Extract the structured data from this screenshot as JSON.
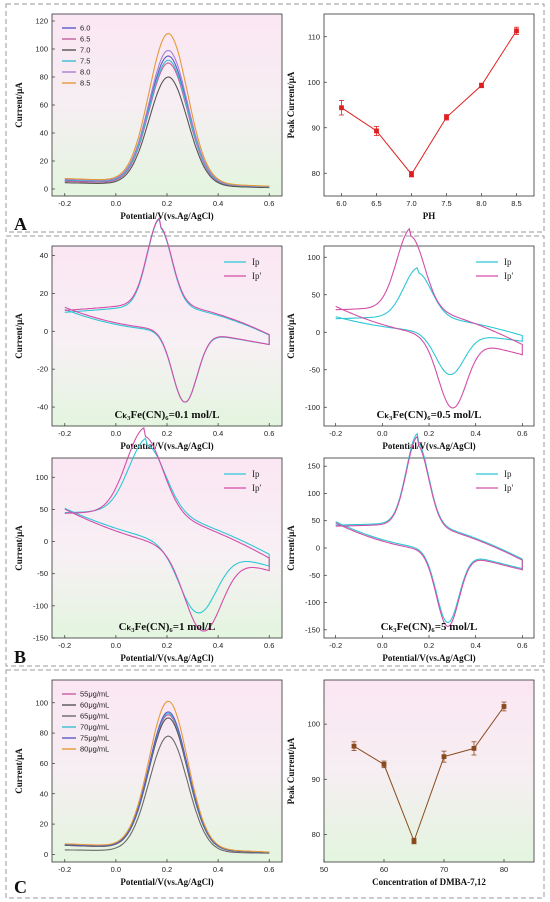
{
  "panel_labels": {
    "a": "A",
    "b": "B",
    "c": "C"
  },
  "chart_data": [
    {
      "id": "A1",
      "type": "line",
      "xlabel": "Potential/V(vs.Ag/AgCl)",
      "ylabel": "Current/μA",
      "xlim": [
        -0.25,
        0.65
      ],
      "ylim": [
        -5,
        125
      ],
      "xticks": [
        -0.2,
        0.0,
        0.2,
        0.4,
        0.6
      ],
      "yticks": [
        0,
        20,
        40,
        60,
        80,
        100,
        120
      ],
      "tick_labels_x": [
        "-0.2",
        "0.0",
        "0.2",
        "0.4",
        "0.6"
      ],
      "tick_labels_y": [
        "0",
        "20",
        "40",
        "60",
        "80",
        "100",
        "120"
      ],
      "legend_position": "top-left",
      "series": [
        {
          "name": "6.0",
          "color": "#5b5bc8",
          "peak": 95,
          "base0": 6,
          "base1": 1.5
        },
        {
          "name": "6.5",
          "color": "#c45fa0",
          "peak": 90,
          "base0": 5.5,
          "base1": 1.2
        },
        {
          "name": "7.0",
          "color": "#555555",
          "peak": 80,
          "base0": 4.5,
          "base1": 1.0
        },
        {
          "name": "7.5",
          "color": "#3dbdd0",
          "peak": 92,
          "base0": 6.5,
          "base1": 1.6
        },
        {
          "name": "8.0",
          "color": "#a77dd6",
          "peak": 99,
          "base0": 7,
          "base1": 1.8
        },
        {
          "name": "8.5",
          "color": "#e59a3a",
          "peak": 111,
          "base0": 7.5,
          "base1": 2.0
        }
      ]
    },
    {
      "id": "A2",
      "type": "scatter",
      "xlabel": "PH",
      "ylabel": "Peak Current/μA",
      "xlim": [
        5.75,
        8.75
      ],
      "ylim": [
        75,
        115
      ],
      "xticks": [
        6.0,
        6.5,
        7.0,
        7.5,
        8.0,
        8.5
      ],
      "yticks": [
        80,
        90,
        100,
        110
      ],
      "tick_labels_x": [
        "6.0",
        "6.5",
        "7.0",
        "7.5",
        "8.0",
        "8.5"
      ],
      "tick_labels_y": [
        "80",
        "90",
        "100",
        "110"
      ],
      "x": [
        6.0,
        6.5,
        7.0,
        7.5,
        8.0,
        8.5
      ],
      "y": [
        94.4,
        89.3,
        79.8,
        92.3,
        99.3,
        111.3
      ],
      "err": [
        1.6,
        1.0,
        0.6,
        0.6,
        0.5,
        0.8
      ],
      "color": "#e02020"
    },
    {
      "id": "B1",
      "type": "line",
      "xlabel": "Potential/V(vs.Ag/AgCl)",
      "ylabel": "Current/μA",
      "condition": "Cₖ₃Fe(CN)₆=0.1 mol/L",
      "xlim": [
        -0.25,
        0.65
      ],
      "ylim": [
        -50,
        45
      ],
      "xticks": [
        -0.2,
        0.0,
        0.2,
        0.4,
        0.6
      ],
      "yticks": [
        -40,
        -20,
        0,
        20,
        40
      ],
      "tick_labels_x": [
        "-0.2",
        "0.0",
        "0.2",
        "0.4",
        "0.6"
      ],
      "tick_labels_y": [
        "-40",
        "-20",
        "0",
        "20",
        "40"
      ],
      "legend_position": "top-right",
      "series": [
        {
          "name": "Ip",
          "color": "#2ec7d6",
          "ipa": 41,
          "ipc": -38,
          "epa": 0.17,
          "epc": 0.27,
          "w": 0.08,
          "a0": 10,
          "c1": -7
        },
        {
          "name": "Ip'",
          "color": "#d24fa8",
          "ipa": 40.5,
          "ipc": -38.5,
          "epa": 0.17,
          "epc": 0.27,
          "w": 0.08,
          "a0": 11,
          "c1": -7
        }
      ]
    },
    {
      "id": "B2",
      "type": "line",
      "xlabel": "Potential/V(vs.Ag/AgCl)",
      "ylabel": "Current/μA",
      "condition": "Cₖ₃Fe(CN)₆=0.5 mol/L",
      "xlim": [
        -0.25,
        0.65
      ],
      "ylim": [
        -125,
        115
      ],
      "xticks": [
        -0.2,
        0.0,
        0.2,
        0.4,
        0.6
      ],
      "yticks": [
        -100,
        -50,
        0,
        50,
        100
      ],
      "tick_labels_x": [
        "-0.2",
        "0.0",
        "0.2",
        "0.4",
        "0.6"
      ],
      "tick_labels_y": [
        "-100",
        "-50",
        "0",
        "50",
        "100"
      ],
      "legend_position": "top-right",
      "series": [
        {
          "name": "Ip",
          "color": "#2ec7d6",
          "ipa": 58,
          "ipc": -57,
          "epa": 0.15,
          "epc": 0.29,
          "w": 0.1,
          "a0": 18,
          "c1": -12
        },
        {
          "name": "Ip'",
          "color": "#d24fa8",
          "ipa": 95,
          "ipc": -95,
          "epa": 0.12,
          "epc": 0.3,
          "w": 0.1,
          "a0": 30,
          "c1": -30
        }
      ]
    },
    {
      "id": "B3",
      "type": "line",
      "xlabel": "Potential/V(vs.Ag/AgCl)",
      "ylabel": "Current/μA",
      "condition": "Cₖ₃Fe(CN)₆=1 mol/L",
      "xlim": [
        -0.25,
        0.65
      ],
      "ylim": [
        -150,
        130
      ],
      "xticks": [
        -0.2,
        0.0,
        0.2,
        0.4,
        0.6
      ],
      "yticks": [
        -150,
        -100,
        -50,
        0,
        50,
        100
      ],
      "tick_labels_x": [
        "-0.2",
        "0.0",
        "0.2",
        "0.4",
        "0.6"
      ],
      "tick_labels_y": [
        "-150",
        "-100",
        "-50",
        "0",
        "50",
        "100"
      ],
      "legend_position": "top-right",
      "series": [
        {
          "name": "Ip",
          "color": "#2ec7d6",
          "ipa": 102,
          "ipc": -104,
          "epa": 0.12,
          "epc": 0.32,
          "w": 0.12,
          "a0": 45,
          "c1": -38
        },
        {
          "name": "Ip'",
          "color": "#d24fa8",
          "ipa": 117,
          "ipc": -125,
          "epa": 0.11,
          "epc": 0.34,
          "w": 0.12,
          "a0": 44,
          "c1": -45
        }
      ]
    },
    {
      "id": "B4",
      "type": "line",
      "xlabel": "Potential/V(vs.Ag/AgCl)",
      "ylabel": "Current/μA",
      "condition": "Cₖ₃Fe(CN)₆=5 mol/L",
      "xlim": [
        -0.25,
        0.65
      ],
      "ylim": [
        -165,
        165
      ],
      "xticks": [
        -0.2,
        0.0,
        0.2,
        0.4,
        0.6
      ],
      "yticks": [
        -150,
        -100,
        -50,
        0,
        50,
        100,
        150
      ],
      "tick_labels_x": [
        "-0.2",
        "0.0",
        "0.2",
        "0.4",
        "0.6"
      ],
      "tick_labels_y": [
        "-150",
        "-100",
        "-50",
        "0",
        "50",
        "100",
        "150"
      ],
      "legend_position": "top-right",
      "series": [
        {
          "name": "Ip",
          "color": "#2ec7d6",
          "ipa": 148,
          "ipc": -133,
          "epa": 0.15,
          "epc": 0.28,
          "w": 0.08,
          "a0": 42,
          "c1": -38
        },
        {
          "name": "Ip'",
          "color": "#d24fa8",
          "ipa": 145,
          "ipc": -138,
          "epa": 0.15,
          "epc": 0.28,
          "w": 0.08,
          "a0": 40,
          "c1": -40
        }
      ]
    },
    {
      "id": "C1",
      "type": "line",
      "xlabel": "Potential/V(vs.Ag/AgCl)",
      "ylabel": "Current/μA",
      "xlim": [
        -0.25,
        0.65
      ],
      "ylim": [
        -5,
        115
      ],
      "xticks": [
        -0.2,
        0.0,
        0.2,
        0.4,
        0.6
      ],
      "yticks": [
        0,
        20,
        40,
        60,
        80,
        100
      ],
      "tick_labels_x": [
        "-0.2",
        "0.0",
        "0.2",
        "0.4",
        "0.6"
      ],
      "tick_labels_y": [
        "0",
        "20",
        "40",
        "60",
        "80",
        "100"
      ],
      "legend_position": "top-left",
      "series": [
        {
          "name": "55μg/mL",
          "color": "#c45fa0",
          "peak": 92,
          "base0": 6,
          "base1": 1.2
        },
        {
          "name": "60μg/mL",
          "color": "#555555",
          "peak": 90,
          "base0": 6,
          "base1": 1.2
        },
        {
          "name": "65μg/mL",
          "color": "#6a6a6a",
          "peak": 78,
          "base0": 3,
          "base1": 0.8
        },
        {
          "name": "70μg/mL",
          "color": "#3dbdd0",
          "peak": 93,
          "base0": 6.5,
          "base1": 1.4
        },
        {
          "name": "75μg/mL",
          "color": "#5b5bc8",
          "peak": 94,
          "base0": 6.5,
          "base1": 1.4
        },
        {
          "name": "80μg/mL",
          "color": "#e59a3a",
          "peak": 101,
          "base0": 7,
          "base1": 1.6
        }
      ]
    },
    {
      "id": "C2",
      "type": "scatter",
      "xlabel": "Concentration of DMBA-7,12",
      "ylabel": "Peak Current/μA",
      "xlim": [
        50,
        85
      ],
      "ylim": [
        75,
        108
      ],
      "xticks": [
        50,
        60,
        70,
        80
      ],
      "yticks": [
        80,
        90,
        100
      ],
      "tick_labels_x": [
        "50",
        "60",
        "70",
        "80"
      ],
      "tick_labels_y": [
        "80",
        "90",
        "100"
      ],
      "x": [
        55,
        60,
        65,
        70,
        75,
        80
      ],
      "y": [
        96.0,
        92.7,
        78.8,
        94.1,
        95.6,
        103.2
      ],
      "err": [
        0.8,
        0.6,
        0.5,
        1.0,
        1.2,
        0.8
      ],
      "color": "#8b4a1e"
    }
  ]
}
